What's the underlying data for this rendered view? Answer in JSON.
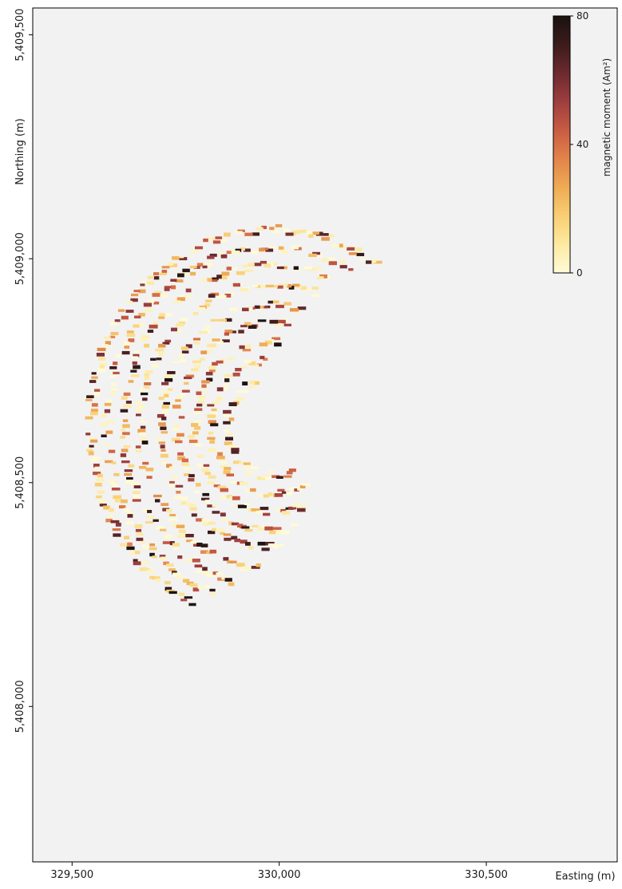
{
  "chart_data": {
    "type": "scatter",
    "title": "",
    "xlabel": "Easting (m)",
    "ylabel": "Northing (m)",
    "xlim": [
      329405,
      330816
    ],
    "ylim": [
      5407653,
      5409560
    ],
    "xticks": [
      {
        "value": 329500,
        "label": "329,500"
      },
      {
        "value": 330000,
        "label": "330,000"
      },
      {
        "value": 330500,
        "label": "330,500"
      }
    ],
    "yticks": [
      {
        "value": 5408000,
        "label": "5,408,000"
      },
      {
        "value": 5408500,
        "label": "5,408,500"
      },
      {
        "value": 5409000,
        "label": "5,409,000"
      },
      {
        "value": 5409500,
        "label": "5,409,500"
      }
    ],
    "colorbar": {
      "label": "magnetic moment (Am²)",
      "min": 0,
      "max": 80,
      "ticks": [
        {
          "value": 0,
          "label": "0"
        },
        {
          "value": 40,
          "label": "40"
        },
        {
          "value": 80,
          "label": "80"
        }
      ],
      "colormap": [
        "#fffbd7",
        "#fde9a1",
        "#f8cf73",
        "#eeab54",
        "#e2844a",
        "#c85c43",
        "#9e3e3f",
        "#6c2a2e",
        "#3c1b1b",
        "#1a1210"
      ]
    },
    "background_color": "#f2f2f2",
    "marker": "short horizontal dash",
    "point_description": "Several thousand magnetic anomaly detections arranged along concentric arcs of a survey area; values range 0-80 Am2, most below 20",
    "arcs": [
      {
        "center": [
          329985,
          5408625
        ],
        "radius": 440,
        "angle_range": [
          55,
          245
        ]
      },
      {
        "center": [
          329985,
          5408625
        ],
        "radius": 400,
        "angle_range": [
          60,
          250
        ]
      },
      {
        "center": [
          329985,
          5408625
        ],
        "radius": 360,
        "angle_range": [
          65,
          255
        ]
      },
      {
        "center": [
          329985,
          5408625
        ],
        "radius": 320,
        "angle_range": [
          70,
          265
        ]
      },
      {
        "center": [
          329985,
          5408625
        ],
        "radius": 270,
        "angle_range": [
          75,
          275
        ]
      },
      {
        "center": [
          329985,
          5408625
        ],
        "radius": 230,
        "angle_range": [
          80,
          285
        ]
      },
      {
        "center": [
          329985,
          5408625
        ],
        "radius": 190,
        "angle_range": [
          85,
          295
        ]
      },
      {
        "center": [
          329985,
          5408625
        ],
        "radius": 150,
        "angle_range": [
          95,
          305
        ]
      },
      {
        "center": [
          329985,
          5408625
        ],
        "radius": 110,
        "angle_range": [
          110,
          300
        ]
      }
    ]
  }
}
